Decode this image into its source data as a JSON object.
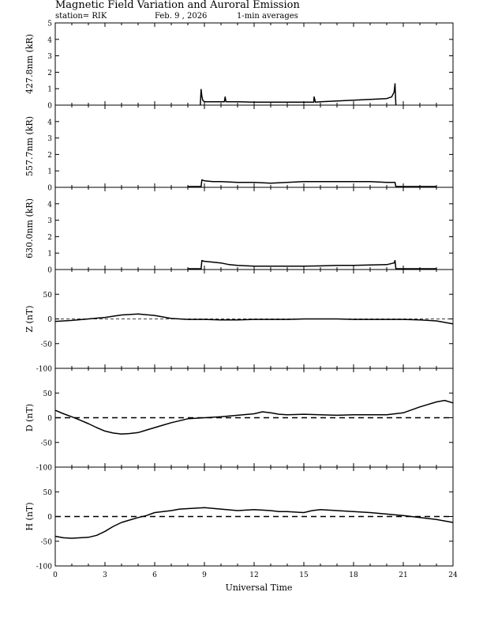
{
  "header": {
    "title": "Magnetic Field Variation and Auroral Emission",
    "station": "station= RIK",
    "date": "Feb. 9  , 2026",
    "averaging": "1-min averages"
  },
  "x_axis": {
    "label": "Universal Time",
    "ticks": [
      "0",
      "3",
      "6",
      "9",
      "12",
      "15",
      "18",
      "21",
      "24"
    ]
  },
  "chart_data": [
    {
      "type": "line",
      "ylabel": "427.8nm (kR)",
      "ylim": [
        0,
        5
      ],
      "yticks": [
        "0",
        "1",
        "2",
        "3",
        "4",
        "5"
      ],
      "zero_line": false,
      "series": [
        {
          "x": [
            8.75,
            8.8,
            8.85,
            8.9,
            9.0,
            9.2,
            9.5,
            10.0,
            10.2,
            10.25,
            10.3,
            11.0,
            12.0,
            13.0,
            14.0,
            15.0,
            15.6,
            15.62,
            15.7,
            16.0,
            17.0,
            18.0,
            19.0,
            20.0,
            20.3,
            20.45,
            20.5,
            20.55
          ],
          "y": [
            0.0,
            0.95,
            0.55,
            0.3,
            0.2,
            0.2,
            0.2,
            0.2,
            0.2,
            0.5,
            0.2,
            0.2,
            0.18,
            0.18,
            0.18,
            0.18,
            0.18,
            0.5,
            0.18,
            0.2,
            0.25,
            0.3,
            0.35,
            0.4,
            0.5,
            0.8,
            1.3,
            0.0
          ]
        }
      ]
    },
    {
      "type": "line",
      "ylabel": "557.7nm (kR)",
      "ylim": [
        0,
        5
      ],
      "yticks": [
        "0",
        "1",
        "2",
        "3",
        "4"
      ],
      "zero_line": false,
      "series": [
        {
          "x": [
            8.0,
            8.8,
            8.85,
            9.0,
            9.5,
            10.0,
            11.0,
            12.0,
            13.0,
            14.0,
            15.0,
            16.0,
            17.0,
            18.0,
            19.0,
            20.0,
            20.5,
            20.55,
            23.0
          ],
          "y": [
            0.05,
            0.05,
            0.45,
            0.4,
            0.35,
            0.35,
            0.3,
            0.3,
            0.25,
            0.3,
            0.35,
            0.35,
            0.35,
            0.35,
            0.35,
            0.3,
            0.3,
            0.05,
            0.05
          ]
        }
      ]
    },
    {
      "type": "line",
      "ylabel": "630.0nm (kR)",
      "ylim": [
        0,
        5
      ],
      "yticks": [
        "0",
        "1",
        "2",
        "3",
        "4"
      ],
      "zero_line": false,
      "series": [
        {
          "x": [
            8.0,
            8.8,
            8.85,
            9.0,
            9.5,
            10.0,
            10.5,
            11.0,
            12.0,
            13.0,
            14.0,
            15.0,
            16.0,
            17.0,
            18.0,
            19.0,
            20.0,
            20.45,
            20.5,
            20.55,
            23.0
          ],
          "y": [
            0.05,
            0.05,
            0.55,
            0.5,
            0.45,
            0.4,
            0.3,
            0.25,
            0.2,
            0.2,
            0.2,
            0.2,
            0.22,
            0.25,
            0.25,
            0.28,
            0.3,
            0.4,
            0.55,
            0.05,
            0.05
          ]
        }
      ]
    },
    {
      "type": "line",
      "ylabel": "Z (nT)",
      "ylim": [
        -100,
        100
      ],
      "yticks": [
        "-100",
        "-50",
        "0",
        "50"
      ],
      "zero_line": true,
      "series": [
        {
          "x": [
            0,
            1,
            2,
            3,
            4,
            5,
            6,
            7,
            8,
            9,
            10,
            11,
            12,
            13,
            14,
            15,
            16,
            17,
            18,
            19,
            20,
            21,
            22,
            23,
            24
          ],
          "y": [
            -5,
            -3,
            0,
            3,
            8,
            10,
            7,
            1,
            -1,
            -1,
            -2,
            -2,
            -1,
            -1,
            -1,
            0,
            0,
            0,
            -1,
            -1,
            -1,
            -1,
            -2,
            -4,
            -10
          ]
        }
      ]
    },
    {
      "type": "line",
      "ylabel": "D (nT)",
      "ylim": [
        -100,
        100
      ],
      "yticks": [
        "-100",
        "-50",
        "0",
        "50"
      ],
      "zero_line": true,
      "series": [
        {
          "x": [
            0,
            0.5,
            1,
            1.5,
            2,
            2.5,
            3,
            3.5,
            4,
            4.5,
            5,
            5.5,
            6,
            6.5,
            7,
            7.5,
            8,
            9,
            10,
            11,
            12,
            12.5,
            13,
            13.5,
            14,
            15,
            16,
            17,
            18,
            19,
            20,
            21,
            22,
            23,
            23.5,
            24
          ],
          "y": [
            15,
            8,
            2,
            -5,
            -12,
            -20,
            -27,
            -31,
            -33,
            -32,
            -30,
            -25,
            -20,
            -15,
            -10,
            -6,
            -2,
            0,
            2,
            5,
            8,
            12,
            10,
            7,
            6,
            7,
            6,
            5,
            6,
            6,
            6,
            10,
            22,
            32,
            35,
            30
          ]
        }
      ]
    },
    {
      "type": "line",
      "ylabel": "H (nT)",
      "ylim": [
        -100,
        100
      ],
      "yticks": [
        "-100",
        "-50",
        "0",
        "50"
      ],
      "zero_line": true,
      "series": [
        {
          "x": [
            0,
            0.5,
            1,
            1.5,
            2,
            2.5,
            3,
            3.5,
            4,
            4.5,
            5,
            5.5,
            6,
            6.5,
            7,
            7.5,
            8,
            8.5,
            9,
            10,
            11,
            12,
            13,
            13.5,
            14,
            15,
            15.5,
            16,
            17,
            18,
            19,
            20,
            21,
            22,
            23,
            24
          ],
          "y": [
            -40,
            -43,
            -44,
            -43,
            -42,
            -38,
            -30,
            -20,
            -12,
            -7,
            -2,
            2,
            8,
            10,
            12,
            15,
            16,
            17,
            18,
            15,
            12,
            14,
            12,
            10,
            10,
            8,
            12,
            14,
            12,
            10,
            8,
            5,
            2,
            -2,
            -6,
            -12
          ]
        }
      ]
    }
  ]
}
